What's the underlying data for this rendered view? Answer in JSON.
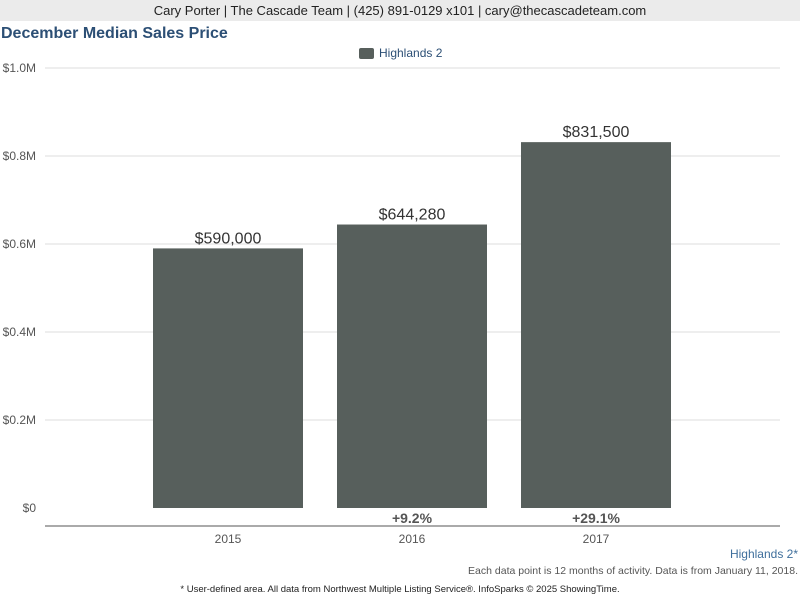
{
  "header": {
    "contact": "Cary Porter | The Cascade Team | (425) 891-0129 x101 | cary@thecascadeteam.com"
  },
  "chart_data": {
    "type": "bar",
    "title": "December Median Sales Price",
    "categories": [
      "2015",
      "2016",
      "2017"
    ],
    "series": [
      {
        "name": "Highlands 2",
        "values": [
          590000,
          644280,
          831500
        ],
        "labels": [
          "$590,000",
          "$644,280",
          "$831,500"
        ],
        "change_labels": [
          "",
          "+9.2%",
          "+29.1%"
        ]
      }
    ],
    "ylim": [
      0,
      1000000
    ],
    "yticks": [
      0,
      200000,
      400000,
      600000,
      800000,
      1000000
    ],
    "ytick_labels": [
      "$0",
      "$0.2M",
      "$0.4M",
      "$0.6M",
      "$0.8M",
      "$1.0M"
    ],
    "grid": true,
    "legend": "top-center",
    "colors": {
      "bar": "#575f5c",
      "title": "#2c4f75",
      "grid": "#dddddd"
    }
  },
  "footer": {
    "area": "Highlands 2*",
    "note": "Each data point is 12 months of activity. Data is from January 11, 2018.",
    "source": "* User-defined area. All data from Northwest Multiple Listing Service®. InfoSparks © 2025 ShowingTime."
  }
}
